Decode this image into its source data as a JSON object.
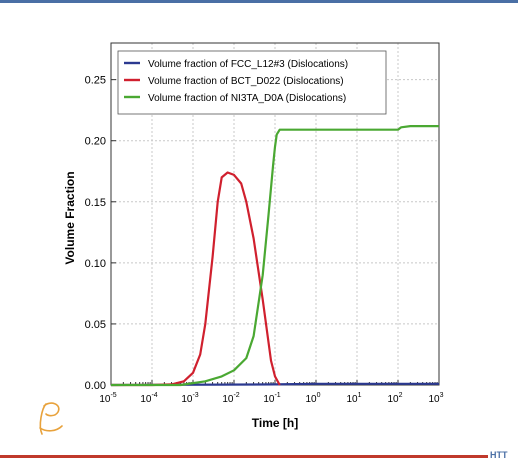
{
  "page": {
    "brand_text": "HTT"
  },
  "colors": {
    "header_rule": "#4a6fa5",
    "footer_rule": "#c0392b",
    "brand": "#4a6fa5",
    "logo": "#e8a23c"
  },
  "chart_data": {
    "type": "line",
    "title": "",
    "xlabel": "Time [h]",
    "ylabel": "Volume Fraction",
    "xscale": "log",
    "xlim": [
      1e-05,
      1000
    ],
    "ylim": [
      0,
      0.28
    ],
    "xticks": [
      {
        "value": 1e-05,
        "base": "10",
        "exp": "-5"
      },
      {
        "value": 0.0001,
        "base": "10",
        "exp": "-4"
      },
      {
        "value": 0.001,
        "base": "10",
        "exp": "-3"
      },
      {
        "value": 0.01,
        "base": "10",
        "exp": "-2"
      },
      {
        "value": 0.1,
        "base": "10",
        "exp": "-1"
      },
      {
        "value": 1,
        "base": "10",
        "exp": "0"
      },
      {
        "value": 10,
        "base": "10",
        "exp": "1"
      },
      {
        "value": 100,
        "base": "10",
        "exp": "2"
      },
      {
        "value": 1000,
        "base": "10",
        "exp": "3"
      }
    ],
    "yticks": [
      {
        "value": 0,
        "label": "0.00"
      },
      {
        "value": 0.05,
        "label": "0.05"
      },
      {
        "value": 0.1,
        "label": "0.10"
      },
      {
        "value": 0.15,
        "label": "0.15"
      },
      {
        "value": 0.2,
        "label": "0.20"
      },
      {
        "value": 0.25,
        "label": "0.25"
      }
    ],
    "grid": true,
    "legend_position": "top-left",
    "series": [
      {
        "name": "Volume fraction of FCC_L12#3 (Dislocations)",
        "color": "#2b3990",
        "x": [
          1e-05,
          0.1,
          1,
          10,
          100,
          1000
        ],
        "y": [
          0,
          0.0005,
          0.001,
          0.001,
          0.001,
          0.001
        ]
      },
      {
        "name": "Volume fraction of BCT_D022 (Dislocations)",
        "color": "#d0202e",
        "x": [
          1e-05,
          0.0001,
          0.0003,
          0.0006,
          0.001,
          0.0015,
          0.002,
          0.003,
          0.004,
          0.005,
          0.007,
          0.01,
          0.015,
          0.02,
          0.03,
          0.05,
          0.08,
          0.1,
          0.13
        ],
        "y": [
          0,
          0,
          0.0005,
          0.003,
          0.01,
          0.025,
          0.05,
          0.105,
          0.15,
          0.17,
          0.174,
          0.172,
          0.165,
          0.15,
          0.12,
          0.07,
          0.02,
          0.007,
          0
        ]
      },
      {
        "name": "Volume fraction of NI3TA_D0A (Dislocations)",
        "color": "#4aa832",
        "x": [
          1e-05,
          0.0005,
          0.002,
          0.005,
          0.01,
          0.02,
          0.03,
          0.05,
          0.07,
          0.09,
          0.1,
          0.11,
          0.13,
          0.2,
          1,
          10,
          100,
          120,
          200,
          1000
        ],
        "y": [
          0,
          0,
          0.003,
          0.007,
          0.012,
          0.022,
          0.04,
          0.09,
          0.14,
          0.18,
          0.195,
          0.205,
          0.209,
          0.209,
          0.209,
          0.209,
          0.209,
          0.211,
          0.212,
          0.212
        ]
      }
    ]
  }
}
